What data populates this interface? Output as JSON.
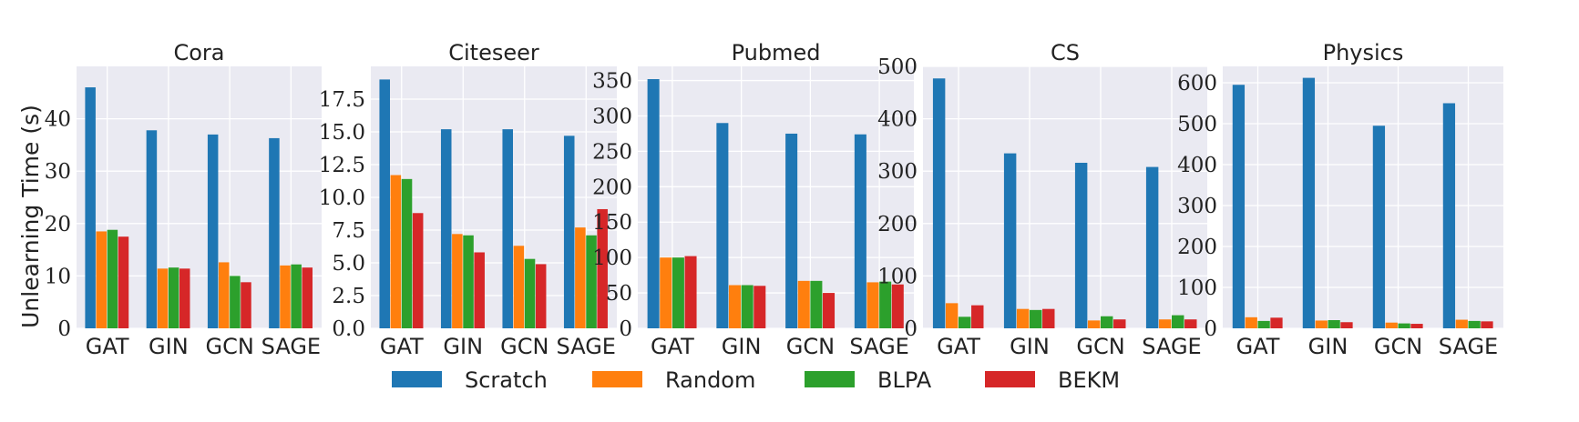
{
  "chart_data": {
    "type": "bar",
    "ylabel": "Unlearning Time (s)",
    "categories": [
      "GAT",
      "GIN",
      "GCN",
      "SAGE"
    ],
    "series_names": [
      "Scratch",
      "Random",
      "BLPA",
      "BEKM"
    ],
    "colors": [
      "#1f77b4",
      "#ff7f0e",
      "#2ca02c",
      "#d62728"
    ],
    "legend_position": "bottom-center",
    "grid": true,
    "panels": [
      {
        "title": "Cora",
        "ylim": [
          0,
          50
        ],
        "yticks": [
          0,
          10,
          20,
          30,
          40
        ],
        "ytick_labels": [
          "0",
          "10",
          "20",
          "30",
          "40"
        ],
        "series": [
          {
            "name": "Scratch",
            "values": [
              46.0,
              37.8,
              37.0,
              36.3
            ]
          },
          {
            "name": "Random",
            "values": [
              18.5,
              11.4,
              12.6,
              12.0
            ]
          },
          {
            "name": "BLPA",
            "values": [
              18.8,
              11.6,
              10.0,
              12.2
            ]
          },
          {
            "name": "BEKM",
            "values": [
              17.5,
              11.4,
              8.8,
              11.6
            ]
          }
        ]
      },
      {
        "title": "Citeseer",
        "ylim": [
          0,
          20
        ],
        "yticks": [
          0,
          2.5,
          5,
          7.5,
          10,
          12.5,
          15,
          17.5
        ],
        "ytick_labels": [
          "0.0",
          "2.5",
          "5.0",
          "7.5",
          "10.0",
          "12.5",
          "15.0",
          "17.5"
        ],
        "series": [
          {
            "name": "Scratch",
            "values": [
              19.0,
              15.2,
              15.2,
              14.7
            ]
          },
          {
            "name": "Random",
            "values": [
              11.7,
              7.2,
              6.3,
              7.7
            ]
          },
          {
            "name": "BLPA",
            "values": [
              11.4,
              7.1,
              5.3,
              7.1
            ]
          },
          {
            "name": "BEKM",
            "values": [
              8.8,
              5.8,
              4.9,
              9.1
            ]
          }
        ]
      },
      {
        "title": "Pubmed",
        "ylim": [
          0,
          370
        ],
        "yticks": [
          0,
          50,
          100,
          150,
          200,
          250,
          300,
          350
        ],
        "ytick_labels": [
          "0",
          "50",
          "100",
          "150",
          "200",
          "250",
          "300",
          "350"
        ],
        "series": [
          {
            "name": "Scratch",
            "values": [
              352,
              290,
              275,
              274
            ]
          },
          {
            "name": "Random",
            "values": [
              100,
              61,
              67,
              65
            ]
          },
          {
            "name": "BLPA",
            "values": [
              100,
              61,
              67,
              66
            ]
          },
          {
            "name": "BEKM",
            "values": [
              102,
              60,
              50,
              62
            ]
          }
        ]
      },
      {
        "title": "CS",
        "ylim": [
          0,
          500
        ],
        "yticks": [
          0,
          100,
          200,
          300,
          400,
          500
        ],
        "ytick_labels": [
          "0",
          "100",
          "200",
          "300",
          "400",
          "500"
        ],
        "series": [
          {
            "name": "Scratch",
            "values": [
              477,
              334,
              316,
              308
            ]
          },
          {
            "name": "Random",
            "values": [
              48,
              37,
              15,
              17
            ]
          },
          {
            "name": "BLPA",
            "values": [
              22,
              35,
              23,
              25
            ]
          },
          {
            "name": "BEKM",
            "values": [
              44,
              37,
              17,
              17
            ]
          }
        ]
      },
      {
        "title": "Physics",
        "ylim": [
          0,
          640
        ],
        "yticks": [
          0,
          100,
          200,
          300,
          400,
          500,
          600
        ],
        "ytick_labels": [
          "0",
          "100",
          "200",
          "300",
          "400",
          "500",
          "600"
        ],
        "series": [
          {
            "name": "Scratch",
            "values": [
              595,
              612,
              495,
              550
            ]
          },
          {
            "name": "Random",
            "values": [
              27,
              19,
              14,
              21
            ]
          },
          {
            "name": "BLPA",
            "values": [
              18,
              20,
              12,
              18
            ]
          },
          {
            "name": "BEKM",
            "values": [
              26,
              15,
              11,
              17
            ]
          }
        ]
      }
    ]
  }
}
